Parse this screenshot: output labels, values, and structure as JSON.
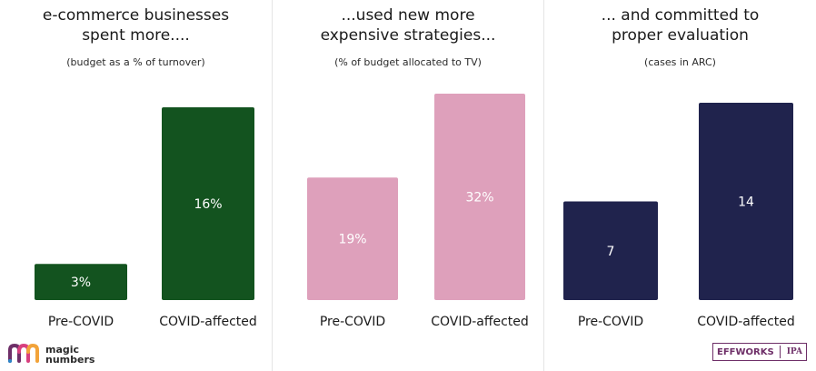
{
  "panels": [
    {
      "title_lines": [
        "e-commerce businesses",
        "spent more...."
      ],
      "subtitle": "(budget as a % of turnover)"
    },
    {
      "title_lines": [
        "...used new more",
        "expensive strategies..."
      ],
      "subtitle": "(% of budget allocated to TV)"
    },
    {
      "title_lines": [
        "... and committed to",
        "proper evaluation"
      ],
      "subtitle": "(cases in ARC)"
    }
  ],
  "chart_data": [
    {
      "type": "bar",
      "categories": [
        "Pre-COVID",
        "COVID-affected"
      ],
      "values": [
        3,
        16
      ],
      "value_labels": [
        "3%",
        "16%"
      ],
      "color": "#13531f",
      "label_color": "#ffffff",
      "title": "e-commerce businesses spent more....",
      "subtitle": "(budget as a % of turnover)"
    },
    {
      "type": "bar",
      "categories": [
        "Pre-COVID",
        "COVID-affected"
      ],
      "values": [
        19,
        32
      ],
      "value_labels": [
        "19%",
        "32%"
      ],
      "color": "#dea0bb",
      "label_color": "#ffffff",
      "title": "...used new more expensive strategies...",
      "subtitle": "(% of budget allocated to TV)"
    },
    {
      "type": "bar",
      "categories": [
        "Pre-COVID",
        "COVID-affected"
      ],
      "values": [
        7,
        14
      ],
      "value_labels": [
        "7",
        "14"
      ],
      "color": "#20234d",
      "label_color": "#ffffff",
      "title": "... and committed to proper evaluation",
      "subtitle": "(cases in ARC)"
    }
  ],
  "logo_left": {
    "line1": "magic",
    "line2": "numbers",
    "icon": "magic-numbers-logo-icon"
  },
  "logo_right": {
    "text": "EFFWORKS",
    "badge": "IPA"
  }
}
